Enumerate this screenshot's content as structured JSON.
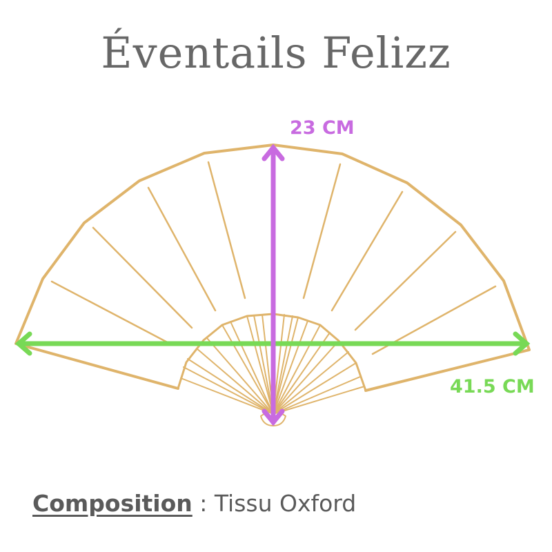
{
  "title": "Éventails Felizz",
  "dimensions": {
    "height_label": "23 CM",
    "width_label": "41.5 CM"
  },
  "composition": {
    "label": "Composition",
    "separator": " : ",
    "value": "Tissu Oxford"
  },
  "colors": {
    "fan": "#dfb46b",
    "height_arrow": "#c86be0",
    "width_arrow": "#78d956",
    "text": "#676767"
  }
}
